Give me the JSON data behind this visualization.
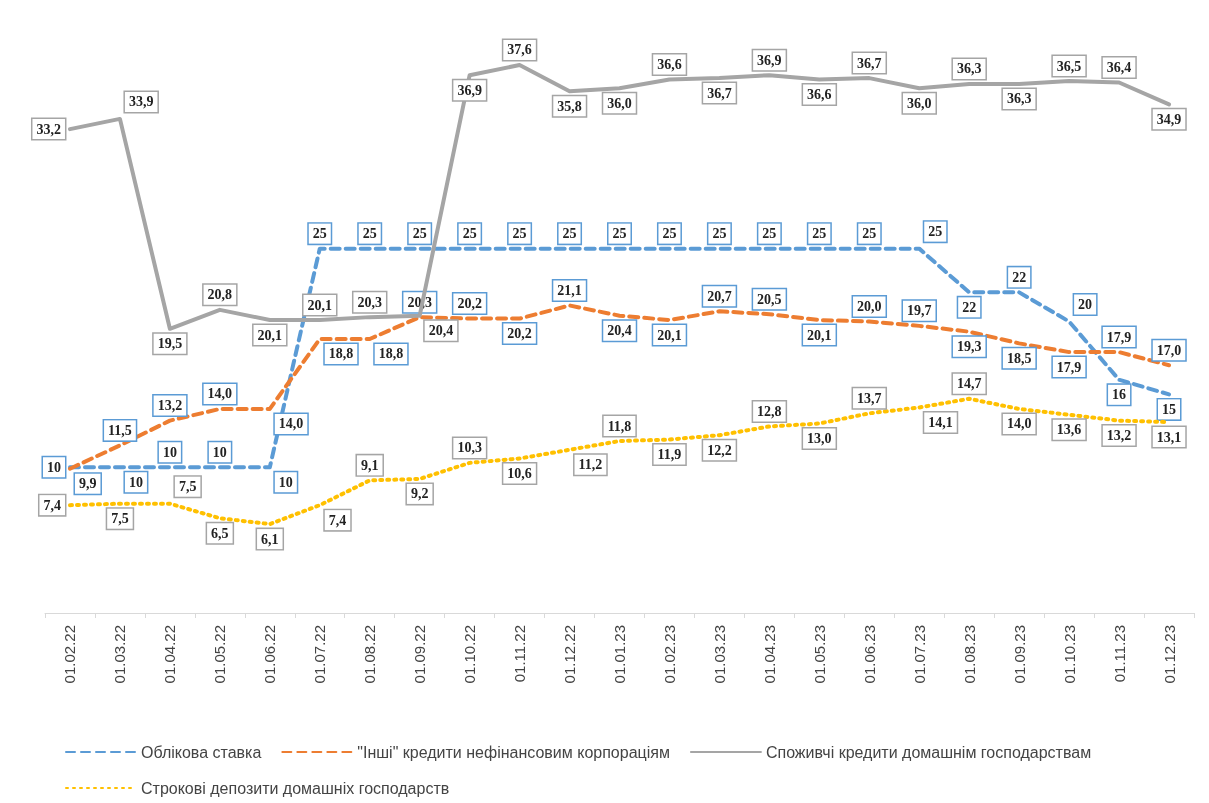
{
  "chart_data": {
    "type": "line",
    "categories": [
      "01.02.22",
      "01.03.22",
      "01.04.22",
      "01.05.22",
      "01.06.22",
      "01.07.22",
      "01.08.22",
      "01.09.22",
      "01.10.22",
      "01.11.22",
      "01.12.22",
      "01.01.23",
      "01.02.23",
      "01.03.23",
      "01.04.23",
      "01.05.23",
      "01.06.23",
      "01.07.23",
      "01.08.23",
      "01.09.23",
      "01.10.23",
      "01.11.23",
      "01.12.23"
    ],
    "series": [
      {
        "name": "Облікова ставка",
        "color": "#5b9bd5",
        "line_style": "dashed",
        "values": [
          10,
          10,
          10,
          10,
          10,
          25,
          25,
          25,
          25,
          25,
          25,
          25,
          25,
          25,
          25,
          25,
          25,
          25,
          22,
          22,
          20,
          16,
          15
        ],
        "value_labels": [
          "10",
          "10",
          "10",
          "10",
          "10",
          "25",
          "25",
          "25",
          "25",
          "25",
          "25",
          "25",
          "25",
          "25",
          "25",
          "25",
          "25",
          "25",
          "22",
          "22",
          "20",
          "16",
          "15"
        ]
      },
      {
        "name": "\"Інші\" кредити нефінансовим корпораціям",
        "color": "#ed7d31",
        "line_style": "dashed",
        "values": [
          9.9,
          11.5,
          13.2,
          14.0,
          14.0,
          18.8,
          18.8,
          20.3,
          20.2,
          20.2,
          21.1,
          20.4,
          20.1,
          20.7,
          20.5,
          20.1,
          20.0,
          19.7,
          19.3,
          18.5,
          17.9,
          17.9,
          17.0
        ],
        "value_labels": [
          "9,9",
          "11,5",
          "13,2",
          "14,0",
          "14,0",
          "18,8",
          "18,8",
          "20,3",
          "20,2",
          "20,2",
          "21,1",
          "20,4",
          "20,1",
          "20,7",
          "20,5",
          "20,1",
          "20,0",
          "19,7",
          "19,3",
          "18,5",
          "17,9",
          "17,9",
          "17,0"
        ]
      },
      {
        "name": "Споживчі кредити домашнім господарствам",
        "color": "#a5a5a5",
        "line_style": "solid",
        "values": [
          33.2,
          33.9,
          19.5,
          20.8,
          20.1,
          20.1,
          20.3,
          20.4,
          36.9,
          37.6,
          35.8,
          36.0,
          36.6,
          36.7,
          36.9,
          36.6,
          36.7,
          36.0,
          36.3,
          36.3,
          36.5,
          36.4,
          34.9
        ],
        "value_labels": [
          "33,2",
          "33,9",
          "19,5",
          "20,8",
          "20,1",
          "20,1",
          "20,3",
          "20,4",
          "36,9",
          "37,6",
          "35,8",
          "36,0",
          "36,6",
          "36,7",
          "36,9",
          "36,6",
          "36,7",
          "36,0",
          "36,3",
          "36,3",
          "36,5",
          "36,4",
          "34,9"
        ]
      },
      {
        "name": "Строкові депозити домашніх господарств",
        "color": "#ffc000",
        "line_style": "dotted",
        "values": [
          7.4,
          7.5,
          7.5,
          6.5,
          6.1,
          7.4,
          9.1,
          9.2,
          10.3,
          10.6,
          11.2,
          11.8,
          11.9,
          12.2,
          12.8,
          13.0,
          13.7,
          14.1,
          14.7,
          14.0,
          13.6,
          13.2,
          13.1
        ],
        "value_labels": [
          "7,4",
          "7,5",
          "7,5",
          "6,5",
          "6,1",
          "7,4",
          "9,1",
          "9,2",
          "10,3",
          "10,6",
          "11,2",
          "11,8",
          "11,9",
          "12,2",
          "12,8",
          "13,0",
          "13,7",
          "14,1",
          "14,7",
          "14,0",
          "13,6",
          "13,2",
          "13,1"
        ]
      }
    ],
    "marker": "none",
    "grid": false,
    "legend": "bottom"
  }
}
